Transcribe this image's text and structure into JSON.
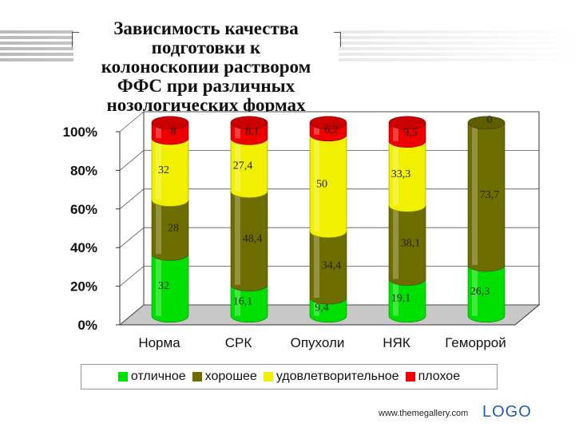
{
  "slide": {
    "title": "Зависимость качества\nподготовки к\nколоноскопии раствором\nФФС при различных\nнозологических формах",
    "footer_url": "www.themegallery.com",
    "footer_logo": "LOGO"
  },
  "chart_data": {
    "type": "bar",
    "stacked": true,
    "percent": true,
    "three_d": "cylinder",
    "categories": [
      "Норма",
      "СРК",
      "Опухоли",
      "НЯК",
      "Геморрой"
    ],
    "y_ticks": [
      "0%",
      "20%",
      "40%",
      "60%",
      "80%",
      "100%"
    ],
    "ylim": [
      0,
      100
    ],
    "legend_position": "bottom",
    "series": [
      {
        "name": "отличное",
        "color": "#00e000",
        "values": [
          32,
          16.1,
          9.4,
          19.1,
          26.3
        ],
        "labels": [
          "32",
          "16,1",
          "9,4",
          "19,1",
          "26,3"
        ]
      },
      {
        "name": "хорошее",
        "color": "#6e6e00",
        "values": [
          28,
          48.4,
          34.4,
          38.1,
          73.7
        ],
        "labels": [
          "28",
          "48,4",
          "34,4",
          "38,1",
          "73,7"
        ]
      },
      {
        "name": "удовлетворительное",
        "color": "#f0f000",
        "values": [
          32,
          27.4,
          50,
          33.3,
          0
        ],
        "labels": [
          "32",
          "27,4",
          "50",
          "33,3",
          ""
        ]
      },
      {
        "name": "плохое",
        "color": "#ee0000",
        "values": [
          8,
          8.1,
          6.2,
          9.5,
          0
        ],
        "labels": [
          "8",
          "8,1",
          "6,2",
          "9,5",
          "0"
        ]
      }
    ]
  }
}
